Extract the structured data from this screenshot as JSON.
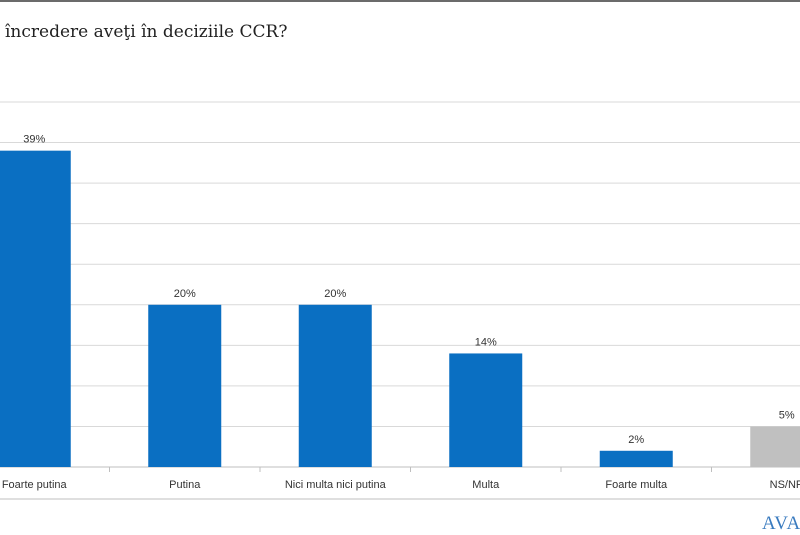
{
  "title": "încredere aveţi în deciziile CCR?",
  "logo": "AVAN",
  "chart_data": {
    "type": "bar",
    "title": "încredere aveţi în deciziile CCR?",
    "categories": [
      "Foarte putina",
      "Putina",
      "Nici multa nici putina",
      "Multa",
      "Foarte multa",
      "NS/NR"
    ],
    "values": [
      39,
      20,
      20,
      14,
      2,
      5
    ],
    "labels": [
      "39%",
      "20%",
      "20%",
      "14%",
      "2%",
      "5%"
    ],
    "colors": [
      "#0a6fc2",
      "#0a6fc2",
      "#0a6fc2",
      "#0a6fc2",
      "#0a6fc2",
      "#c0c0c0"
    ],
    "ylim": [
      0,
      45
    ],
    "grid": true,
    "xlabel": "",
    "ylabel": ""
  }
}
